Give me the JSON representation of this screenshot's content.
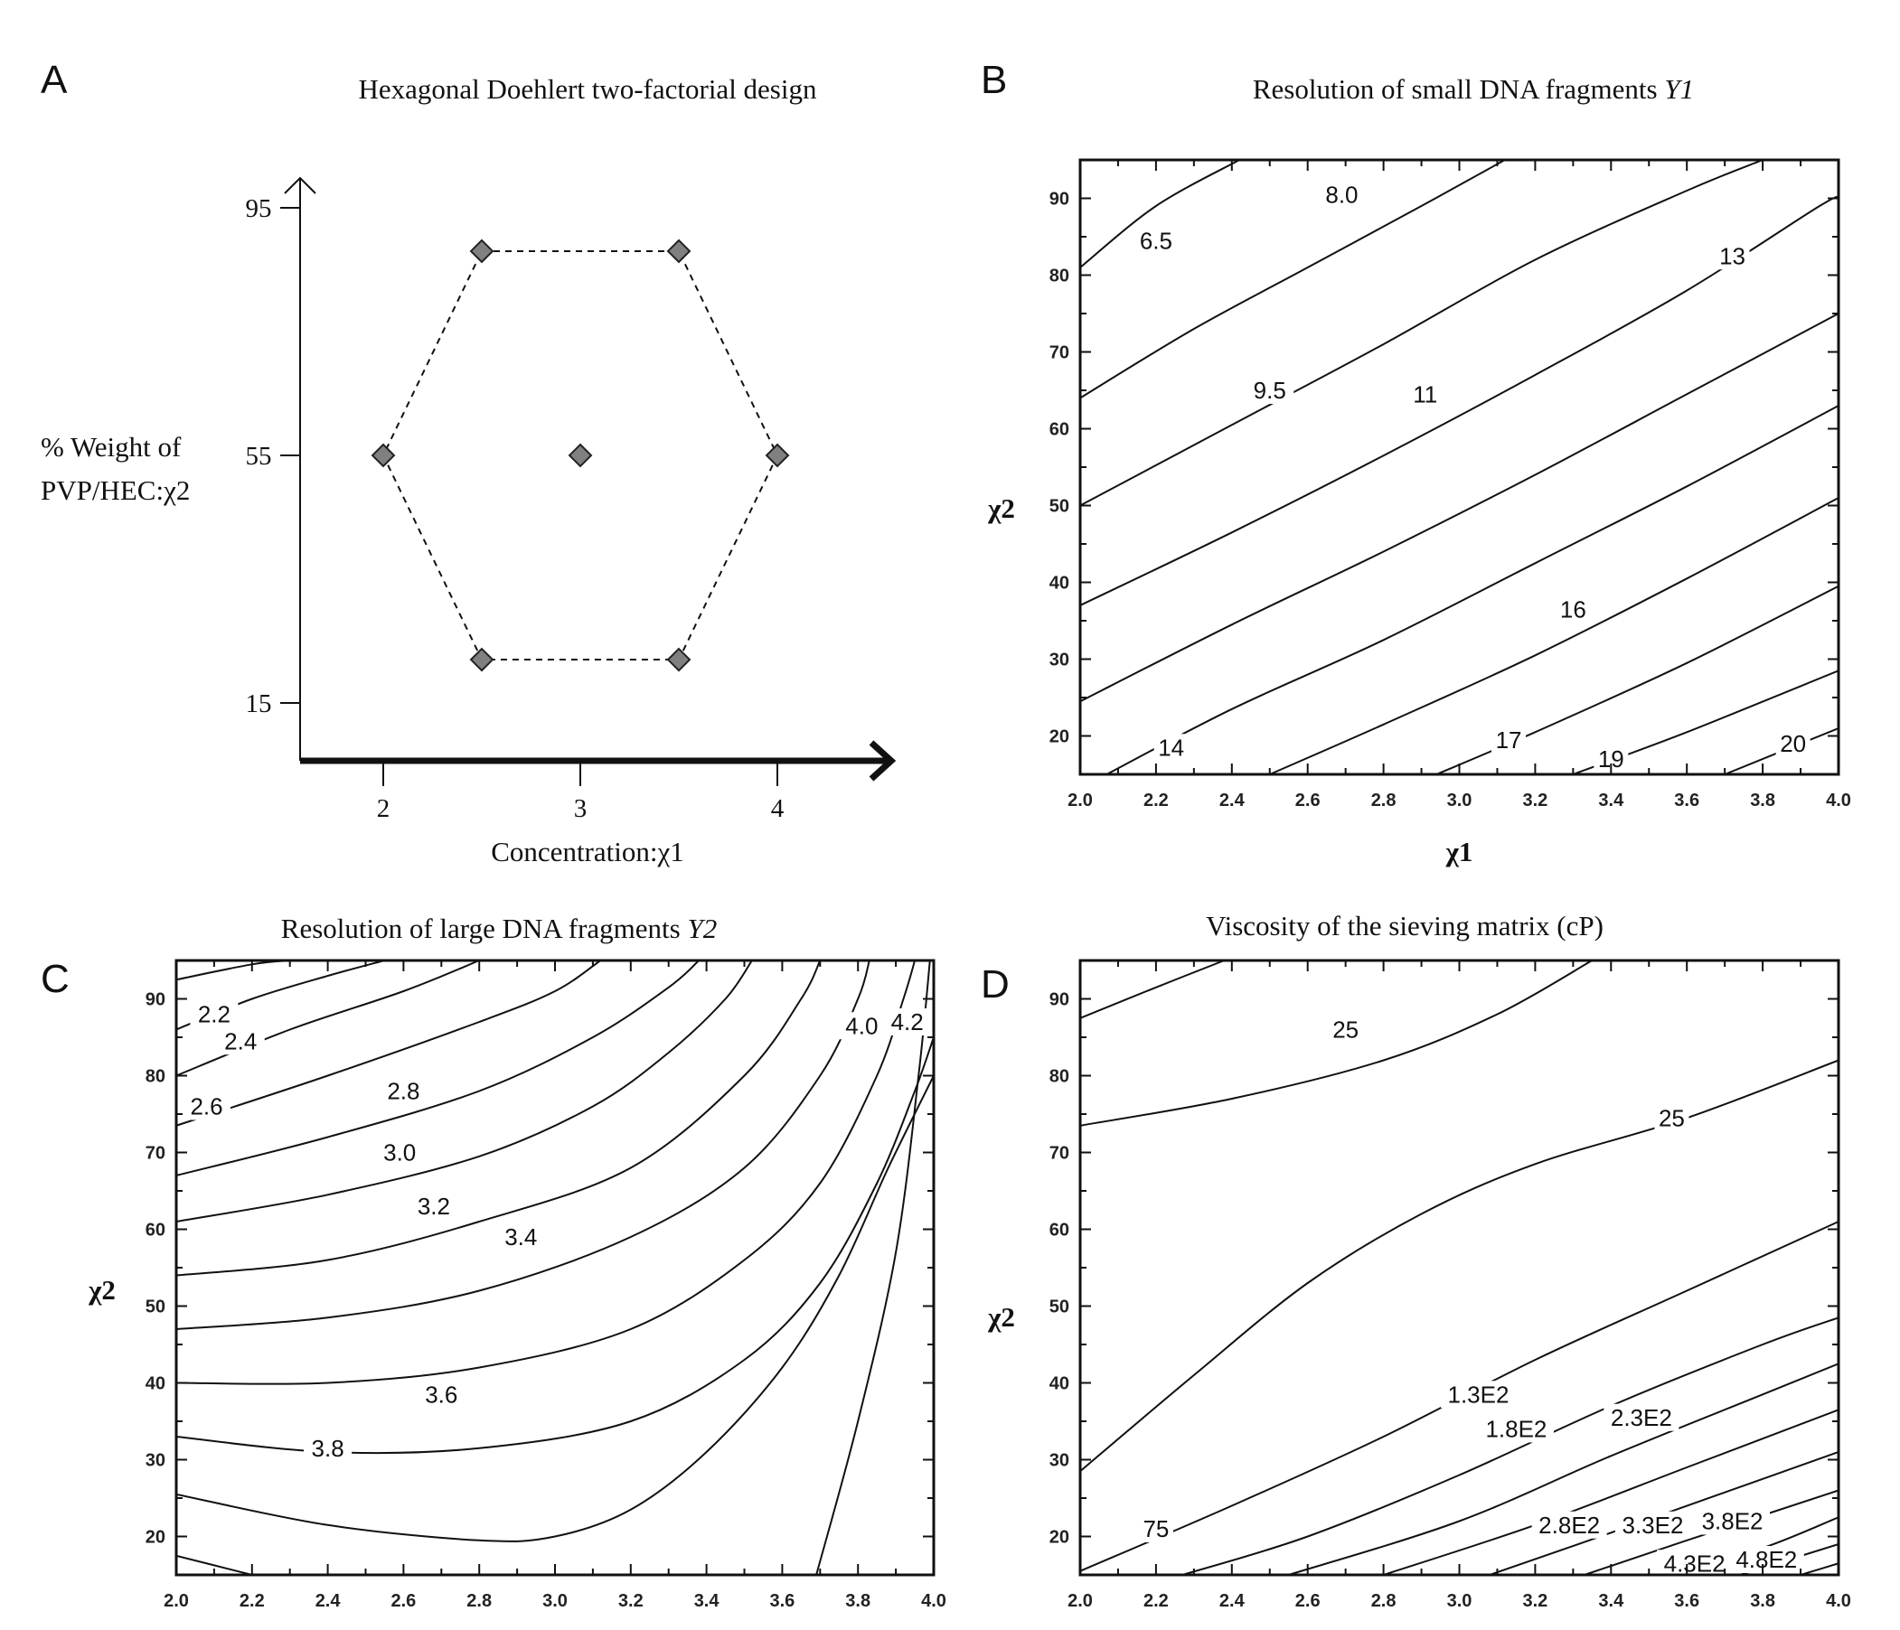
{
  "chart_data": [
    {
      "panel": "A",
      "type": "scatter",
      "title": "Hexagonal Doehlert two-factorial design",
      "xlabel": "Concentration:χ1",
      "ylabel_line1": "% Weight of",
      "ylabel_line2": "PVP/HEC:χ2",
      "xticks": [
        2,
        3,
        4
      ],
      "yticks": [
        15,
        55,
        95
      ],
      "points": [
        {
          "x": 2.5,
          "y": 88
        },
        {
          "x": 3.5,
          "y": 88
        },
        {
          "x": 2,
          "y": 55
        },
        {
          "x": 3,
          "y": 55
        },
        {
          "x": 4,
          "y": 55
        },
        {
          "x": 2.5,
          "y": 22
        },
        {
          "x": 3.5,
          "y": 22
        }
      ],
      "hexagon_order": [
        0,
        1,
        4,
        6,
        5,
        2
      ],
      "colors": {
        "marker": "#808080",
        "marker_edge": "#222222"
      }
    },
    {
      "panel": "B",
      "type": "contour",
      "title_main": "Resolution of small DNA fragments ",
      "title_italic": "Y1",
      "xlabel": "χ1",
      "ylabel": "χ2",
      "xlim": [
        2.0,
        4.0
      ],
      "ylim": [
        15,
        95
      ],
      "xticks": [
        "2.0",
        "2.2",
        "2.4",
        "2.6",
        "2.8",
        "3.0",
        "3.2",
        "3.4",
        "3.6",
        "3.8",
        "4.0"
      ],
      "yticks": [
        "20",
        "30",
        "40",
        "50",
        "60",
        "70",
        "80",
        "90"
      ],
      "lines": [
        {
          "pts": [
            [
              2.0,
              81
            ],
            [
              2.2,
              89
            ],
            [
              2.42,
              95
            ]
          ]
        },
        {
          "pts": [
            [
              2.0,
              64
            ],
            [
              2.3,
              73
            ],
            [
              2.6,
              81
            ],
            [
              2.9,
              89
            ],
            [
              3.12,
              95
            ]
          ]
        },
        {
          "pts": [
            [
              2.0,
              50
            ],
            [
              2.4,
              60.5
            ],
            [
              2.8,
              71
            ],
            [
              3.2,
              82
            ],
            [
              3.6,
              91
            ],
            [
              3.8,
              95
            ]
          ]
        },
        {
          "pts": [
            [
              2.0,
              37
            ],
            [
              2.4,
              46.5
            ],
            [
              2.8,
              56.5
            ],
            [
              3.2,
              67
            ],
            [
              3.6,
              78
            ],
            [
              3.95,
              89
            ],
            [
              4.0,
              90
            ]
          ]
        },
        {
          "pts": [
            [
              2.0,
              24.5
            ],
            [
              2.4,
              34.5
            ],
            [
              2.8,
              44
            ],
            [
              3.2,
              54
            ],
            [
              3.6,
              64.5
            ],
            [
              4.0,
              75
            ]
          ]
        },
        {
          "pts": [
            [
              2.07,
              15
            ],
            [
              2.4,
              23.5
            ],
            [
              2.8,
              32.5
            ],
            [
              3.2,
              42.5
            ],
            [
              3.6,
              52.5
            ],
            [
              4.0,
              63
            ]
          ]
        },
        {
          "pts": [
            [
              2.5,
              15
            ],
            [
              2.8,
              21.5
            ],
            [
              3.2,
              30.5
            ],
            [
              3.6,
              40.5
            ],
            [
              4.0,
              51
            ]
          ]
        },
        {
          "pts": [
            [
              2.94,
              15
            ],
            [
              3.2,
              20.5
            ],
            [
              3.6,
              29.5
            ],
            [
              4.0,
              39.5
            ]
          ]
        },
        {
          "pts": [
            [
              3.3,
              15
            ],
            [
              3.6,
              20.5
            ],
            [
              4.0,
              28.5
            ]
          ]
        },
        {
          "pts": [
            [
              3.7,
              15
            ],
            [
              4.0,
              21
            ]
          ]
        }
      ],
      "labels": [
        {
          "text": "6.5",
          "x": 2.2,
          "y": 84.5
        },
        {
          "text": "8.0",
          "x": 2.69,
          "y": 90.5
        },
        {
          "text": "13",
          "x": 3.72,
          "y": 82.5
        },
        {
          "text": "9.5",
          "x": 2.5,
          "y": 65
        },
        {
          "text": "11",
          "x": 2.91,
          "y": 64.5
        },
        {
          "text": "16",
          "x": 3.3,
          "y": 36.5
        },
        {
          "text": "14",
          "x": 2.24,
          "y": 18.5
        },
        {
          "text": "17",
          "x": 3.13,
          "y": 19.5
        },
        {
          "text": "19",
          "x": 3.4,
          "y": 17
        },
        {
          "text": "20",
          "x": 3.88,
          "y": 19
        }
      ]
    },
    {
      "panel": "C",
      "type": "contour",
      "title_main": "Resolution of large DNA fragments ",
      "title_italic": "Y2",
      "xlabel": "χ1",
      "ylabel": "χ2",
      "xlim": [
        2.0,
        4.0
      ],
      "ylim": [
        15,
        95
      ],
      "xticks": [
        "2.0",
        "2.2",
        "2.4",
        "2.6",
        "2.8",
        "3.0",
        "3.2",
        "3.4",
        "3.6",
        "3.8",
        "4.0"
      ],
      "yticks": [
        "20",
        "30",
        "40",
        "50",
        "60",
        "70",
        "80",
        "90"
      ],
      "lines": [
        {
          "pts": [
            [
              2.0,
              92.5
            ],
            [
              2.2,
              94.5
            ],
            [
              2.3,
              95
            ]
          ]
        },
        {
          "pts": [
            [
              2.0,
              86
            ],
            [
              2.2,
              90
            ],
            [
              2.4,
              93
            ],
            [
              2.55,
              95
            ]
          ]
        },
        {
          "pts": [
            [
              2.0,
              80
            ],
            [
              2.3,
              86
            ],
            [
              2.6,
              91
            ],
            [
              2.8,
              95
            ]
          ]
        },
        {
          "pts": [
            [
              2.0,
              73.5
            ],
            [
              2.4,
              80
            ],
            [
              2.8,
              87
            ],
            [
              3.0,
              91
            ],
            [
              3.12,
              95
            ]
          ]
        },
        {
          "pts": [
            [
              2.0,
              67
            ],
            [
              2.4,
              72
            ],
            [
              2.8,
              78
            ],
            [
              3.1,
              85
            ],
            [
              3.3,
              91.5
            ],
            [
              3.38,
              95
            ]
          ]
        },
        {
          "pts": [
            [
              2.0,
              61
            ],
            [
              2.4,
              64.5
            ],
            [
              2.8,
              69.5
            ],
            [
              3.1,
              76
            ],
            [
              3.3,
              83
            ],
            [
              3.45,
              90
            ],
            [
              3.52,
              95
            ]
          ]
        },
        {
          "pts": [
            [
              2.0,
              54
            ],
            [
              2.4,
              56
            ],
            [
              2.8,
              61
            ],
            [
              3.2,
              68
            ],
            [
              3.5,
              80
            ],
            [
              3.65,
              90
            ],
            [
              3.7,
              95
            ]
          ]
        },
        {
          "pts": [
            [
              2.0,
              47
            ],
            [
              2.4,
              48.5
            ],
            [
              2.8,
              52
            ],
            [
              3.2,
              59
            ],
            [
              3.5,
              68
            ],
            [
              3.7,
              80
            ],
            [
              3.8,
              90
            ],
            [
              3.83,
              95
            ]
          ]
        },
        {
          "pts": [
            [
              2.0,
              40
            ],
            [
              2.4,
              40
            ],
            [
              2.8,
              42
            ],
            [
              3.2,
              47
            ],
            [
              3.5,
              56
            ],
            [
              3.7,
              66
            ],
            [
              3.85,
              80
            ],
            [
              3.92,
              90
            ],
            [
              3.95,
              95
            ]
          ]
        },
        {
          "pts": [
            [
              2.0,
              33
            ],
            [
              2.4,
              31
            ],
            [
              2.8,
              31.5
            ],
            [
              3.2,
              35
            ],
            [
              3.5,
              43
            ],
            [
              3.7,
              53
            ],
            [
              3.85,
              66
            ],
            [
              3.95,
              78
            ],
            [
              4.0,
              85
            ]
          ]
        },
        {
          "pts": [
            [
              2.0,
              25.5
            ],
            [
              2.4,
              21.5
            ],
            [
              2.8,
              19.5
            ],
            [
              3.0,
              20
            ],
            [
              3.2,
              23.5
            ],
            [
              3.4,
              31
            ],
            [
              3.6,
              42
            ],
            [
              3.75,
              54
            ],
            [
              3.88,
              68
            ],
            [
              4.0,
              80
            ]
          ]
        },
        {
          "pts": [
            [
              2.0,
              17.5
            ],
            [
              2.2,
              15
            ]
          ]
        },
        {
          "pts": [
            [
              3.69,
              15
            ],
            [
              3.8,
              35
            ],
            [
              3.9,
              57
            ],
            [
              3.96,
              80
            ],
            [
              3.99,
              95
            ]
          ]
        }
      ],
      "labels": [
        {
          "text": "2.2",
          "x": 2.1,
          "y": 88
        },
        {
          "text": "2.4",
          "x": 2.17,
          "y": 84.5
        },
        {
          "text": "2.6",
          "x": 2.08,
          "y": 76
        },
        {
          "text": "2.8",
          "x": 2.6,
          "y": 78
        },
        {
          "text": "3.0",
          "x": 2.59,
          "y": 70
        },
        {
          "text": "3.2",
          "x": 2.68,
          "y": 63
        },
        {
          "text": "3.4",
          "x": 2.91,
          "y": 59
        },
        {
          "text": "3.6",
          "x": 2.7,
          "y": 38.5
        },
        {
          "text": "3.8",
          "x": 2.4,
          "y": 31.5
        },
        {
          "text": "4.0",
          "x": 3.81,
          "y": 86.5
        },
        {
          "text": "4.2",
          "x": 3.93,
          "y": 87
        }
      ]
    },
    {
      "panel": "D",
      "type": "contour",
      "title_main": "Viscosity of the sieving matrix (cP)",
      "title_italic": "",
      "xlabel": "χ1",
      "ylabel": "χ2",
      "xlim": [
        2.0,
        4.0
      ],
      "ylim": [
        15,
        95
      ],
      "xticks": [
        "2.0",
        "2.2",
        "2.4",
        "2.6",
        "2.8",
        "3.0",
        "3.2",
        "3.4",
        "3.6",
        "3.8",
        "4.0"
      ],
      "yticks": [
        "20",
        "30",
        "40",
        "50",
        "60",
        "70",
        "80",
        "90"
      ],
      "lines": [
        {
          "pts": [
            [
              2.0,
              87.5
            ],
            [
              2.2,
              91.5
            ],
            [
              2.38,
              95
            ]
          ]
        },
        {
          "pts": [
            [
              2.0,
              73.5
            ],
            [
              2.4,
              77
            ],
            [
              2.8,
              82
            ],
            [
              3.1,
              88
            ],
            [
              3.35,
              95
            ]
          ]
        },
        {
          "pts": [
            [
              2.0,
              28.5
            ],
            [
              2.3,
              41
            ],
            [
              2.6,
              53
            ],
            [
              2.9,
              62
            ],
            [
              3.2,
              68.5
            ],
            [
              3.6,
              74.5
            ],
            [
              4.0,
              82
            ]
          ]
        },
        {
          "pts": [
            [
              2.0,
              15.5
            ],
            [
              2.4,
              24
            ],
            [
              2.8,
              33
            ],
            [
              3.2,
              43
            ],
            [
              3.6,
              52
            ],
            [
              4.0,
              61
            ]
          ]
        },
        {
          "pts": [
            [
              2.27,
              15
            ],
            [
              2.6,
              20
            ],
            [
              3.0,
              28
            ],
            [
              3.4,
              37
            ],
            [
              3.8,
              45
            ],
            [
              4.0,
              48.5
            ]
          ]
        },
        {
          "pts": [
            [
              2.55,
              15
            ],
            [
              3.0,
              22
            ],
            [
              3.4,
              30.5
            ],
            [
              3.8,
              38.5
            ],
            [
              4.0,
              42.5
            ]
          ]
        },
        {
          "pts": [
            [
              2.8,
              15
            ],
            [
              3.2,
              21.5
            ],
            [
              3.6,
              29
            ],
            [
              4.0,
              36.5
            ]
          ]
        },
        {
          "pts": [
            [
              3.08,
              15
            ],
            [
              3.4,
              20.5
            ],
            [
              3.8,
              27.5
            ],
            [
              4.0,
              31
            ]
          ]
        },
        {
          "pts": [
            [
              3.33,
              15
            ],
            [
              3.6,
              19.5
            ],
            [
              4.0,
              26
            ]
          ]
        },
        {
          "pts": [
            [
              3.55,
              15
            ],
            [
              3.8,
              18.5
            ],
            [
              4.0,
              22.5
            ]
          ]
        },
        {
          "pts": [
            [
              3.74,
              15
            ],
            [
              4.0,
              19
            ]
          ]
        },
        {
          "pts": [
            [
              3.9,
              15
            ],
            [
              4.0,
              16.5
            ]
          ]
        }
      ],
      "labels": [
        {
          "text": "25",
          "x": 2.7,
          "y": 86
        },
        {
          "text": "25",
          "x": 3.56,
          "y": 74.5
        },
        {
          "text": "75",
          "x": 2.2,
          "y": 21
        },
        {
          "text": "1.3E2",
          "x": 3.05,
          "y": 38.5
        },
        {
          "text": "1.8E2",
          "x": 3.15,
          "y": 34
        },
        {
          "text": "2.3E2",
          "x": 3.48,
          "y": 35.5
        },
        {
          "text": "2.8E2",
          "x": 3.29,
          "y": 21.5
        },
        {
          "text": "3.3E2",
          "x": 3.51,
          "y": 21.5
        },
        {
          "text": "3.8E2",
          "x": 3.72,
          "y": 22
        },
        {
          "text": "4.3E2",
          "x": 3.62,
          "y": 16.5
        },
        {
          "text": "4.8E2",
          "x": 3.81,
          "y": 17
        }
      ]
    }
  ]
}
